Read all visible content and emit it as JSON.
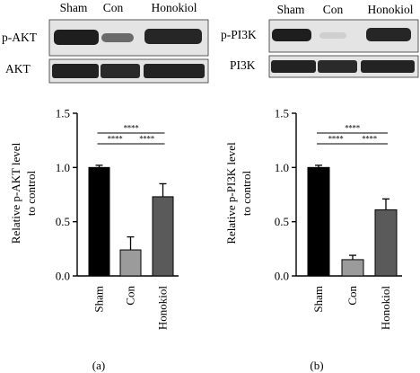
{
  "colors": {
    "sham": "#000000",
    "con": "#9b9b9b",
    "honokiol": "#5a5a5a",
    "band_bg": "#e6e6e6",
    "band_dark": "#1e1e1e"
  },
  "blot_a": {
    "lanes": [
      "Sham",
      "Con",
      "Honokiol"
    ],
    "rows": [
      "p-AKT",
      "AKT"
    ]
  },
  "blot_b": {
    "lanes": [
      "Sham",
      "Con",
      "Honokiol"
    ],
    "rows": [
      "p-PI3K",
      "PI3K"
    ]
  },
  "chart_data": [
    {
      "type": "bar",
      "panel": "(a)",
      "categories": [
        "Sham",
        "Con",
        "Honokiol"
      ],
      "values": [
        1.0,
        0.24,
        0.73
      ],
      "errors": [
        0.02,
        0.12,
        0.12
      ],
      "ylabel": "Relative p-AKT level to control",
      "ylabel_lines": [
        "Relative p-AKT level",
        "to control"
      ],
      "ylim": [
        0,
        1.5
      ],
      "yticks": [
        "0.0",
        "0.5",
        "1.0",
        "1.5"
      ],
      "significance": [
        {
          "from": 0,
          "to": 1,
          "label": "****"
        },
        {
          "from": 1,
          "to": 2,
          "label": "****"
        },
        {
          "from": 0,
          "to": 2,
          "label": "****"
        }
      ]
    },
    {
      "type": "bar",
      "panel": "(b)",
      "categories": [
        "Sham",
        "Con",
        "Honokiol"
      ],
      "values": [
        1.0,
        0.15,
        0.61
      ],
      "errors": [
        0.02,
        0.04,
        0.1
      ],
      "ylabel": "Relative p-PI3K level to control",
      "ylabel_lines": [
        "Relative p-PI3K level",
        "to control"
      ],
      "ylim": [
        0,
        1.5
      ],
      "yticks": [
        "0.0",
        "0.5",
        "1.0",
        "1.5"
      ],
      "significance": [
        {
          "from": 0,
          "to": 1,
          "label": "****"
        },
        {
          "from": 1,
          "to": 2,
          "label": "****"
        },
        {
          "from": 0,
          "to": 2,
          "label": "****"
        }
      ]
    }
  ]
}
